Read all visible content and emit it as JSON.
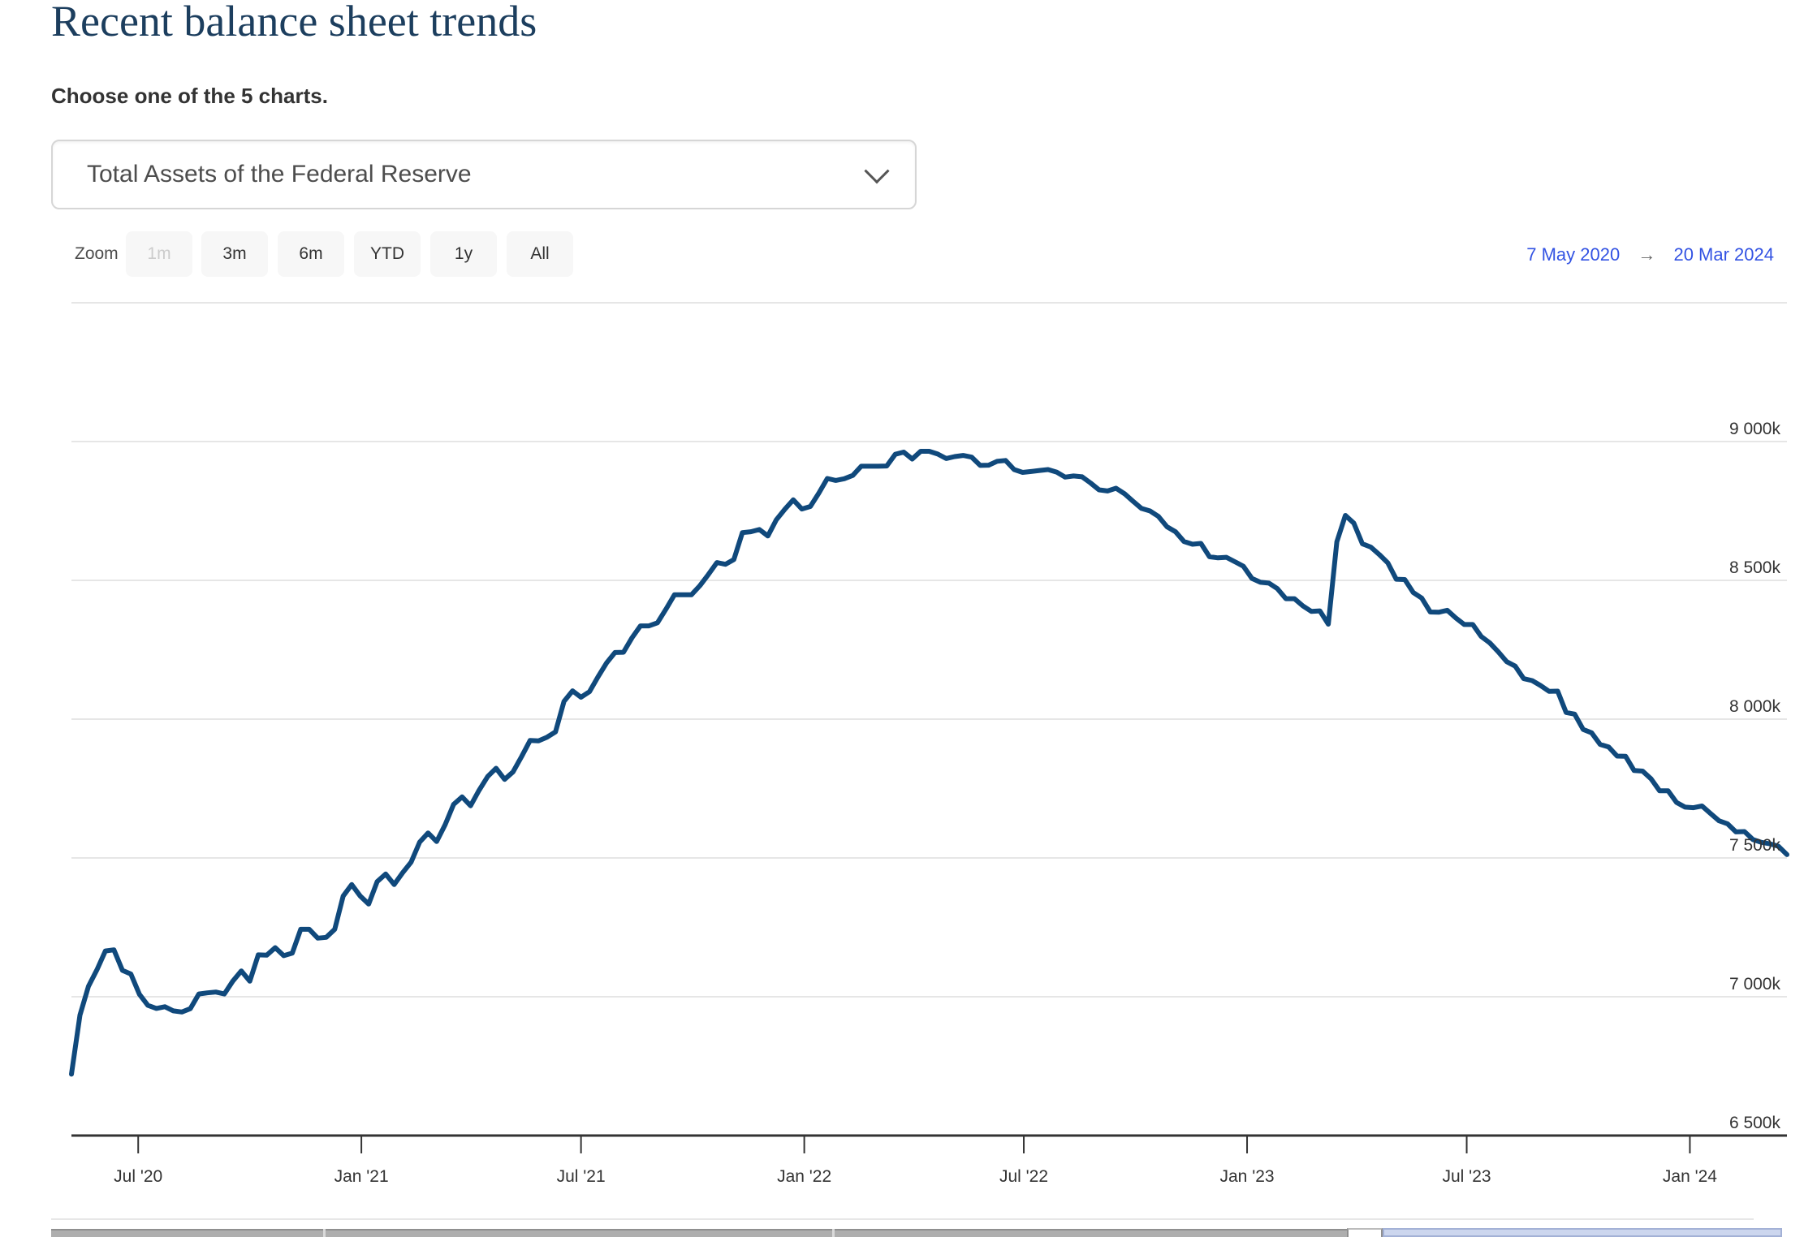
{
  "page": {
    "title": "Recent balance sheet trends",
    "subtitle": "Choose one of the 5 charts."
  },
  "chart_selector": {
    "selected": "Total Assets of the Federal Reserve"
  },
  "toolbar": {
    "zoom_label": "Zoom",
    "buttons": [
      {
        "label": "1m",
        "disabled": true
      },
      {
        "label": "3m",
        "disabled": false
      },
      {
        "label": "6m",
        "disabled": false
      },
      {
        "label": "YTD",
        "disabled": false
      },
      {
        "label": "1y",
        "disabled": false
      },
      {
        "label": "All",
        "disabled": false
      }
    ],
    "range_from": "7 May 2020",
    "arrow": "→",
    "range_to": "20 Mar 2024"
  },
  "colors": {
    "series_line": "#10497c",
    "title_text": "#1c3e5e",
    "date_link": "#3353e3",
    "grid": "#e6e6e6",
    "axis": "#333333",
    "button_bg": "#f7f7f7",
    "disabled_text": "#cccccc",
    "scroll_thumb": "#ccd6ee"
  },
  "chart_data": {
    "type": "line",
    "series_name": "Total Assets of the Federal Reserve",
    "unit": "USD billions; axis labels shown as thousands of millions, e.g. '9 000k' = 9,000,000 million",
    "start_date": "2020-05-07",
    "end_date": "2024-03-20",
    "interval": "weekly",
    "grid": true,
    "legend": false,
    "ylim": [
      6500,
      9500
    ],
    "y_gridline_values": [
      9500,
      9000,
      8500,
      8000,
      7500,
      7000
    ],
    "y_ticks": [
      {
        "label": "9 000k",
        "value": 9000
      },
      {
        "label": "8 500k",
        "value": 8500
      },
      {
        "label": "8 000k",
        "value": 8000
      },
      {
        "label": "7 500k",
        "value": 7500
      },
      {
        "label": "7 000k",
        "value": 7000
      },
      {
        "label": "6 500k",
        "value": 6500
      }
    ],
    "x_ticks": [
      {
        "label": "Jul '20",
        "week": 7.86
      },
      {
        "label": "Jan '21",
        "week": 34.14
      },
      {
        "label": "Jul '21",
        "week": 60.0
      },
      {
        "label": "Jan '22",
        "week": 86.29
      },
      {
        "label": "Jul '22",
        "week": 112.14
      },
      {
        "label": "Jan '23",
        "week": 138.43
      },
      {
        "label": "Jul '23",
        "week": 164.29
      },
      {
        "label": "Jan '24",
        "week": 190.57
      }
    ],
    "values_usd_billions": [
      6721,
      6934,
      7037,
      7097,
      7165,
      7169,
      7095,
      7082,
      7009,
      6969,
      6958,
      6964,
      6949,
      6945,
      6957,
      7010,
      7014,
      7017,
      7010,
      7056,
      7093,
      7056,
      7151,
      7150,
      7177,
      7148,
      7157,
      7243,
      7243,
      7211,
      7214,
      7243,
      7363,
      7404,
      7363,
      7334,
      7415,
      7442,
      7404,
      7447,
      7485,
      7557,
      7590,
      7559,
      7620,
      7693,
      7720,
      7688,
      7744,
      7793,
      7823,
      7783,
      7810,
      7865,
      7923,
      7922,
      7935,
      7954,
      8064,
      8102,
      8079,
      8099,
      8152,
      8202,
      8240,
      8241,
      8293,
      8336,
      8336,
      8347,
      8396,
      8448,
      8448,
      8448,
      8481,
      8521,
      8564,
      8558,
      8575,
      8672,
      8675,
      8683,
      8660,
      8718,
      8756,
      8790,
      8757,
      8766,
      8814,
      8867,
      8860,
      8866,
      8878,
      8911,
      8911,
      8911,
      8912,
      8954,
      8962,
      8937,
      8965,
      8965,
      8955,
      8939,
      8946,
      8950,
      8944,
      8914,
      8915,
      8929,
      8932,
      8899,
      8889,
      8892,
      8896,
      8899,
      8890,
      8872,
      8876,
      8873,
      8851,
      8826,
      8822,
      8832,
      8812,
      8785,
      8759,
      8750,
      8730,
      8693,
      8675,
      8640,
      8630,
      8633,
      8585,
      8581,
      8583,
      8567,
      8551,
      8507,
      8493,
      8490,
      8470,
      8434,
      8434,
      8408,
      8388,
      8390,
      8342,
      8639,
      8734,
      8706,
      8632,
      8620,
      8593,
      8563,
      8504,
      8503,
      8456,
      8436,
      8386,
      8385,
      8392,
      8365,
      8341,
      8341,
      8298,
      8275,
      8243,
      8207,
      8191,
      8146,
      8139,
      8121,
      8100,
      8101,
      8024,
      8018,
      7963,
      7951,
      7909,
      7900,
      7867,
      7866,
      7815,
      7813,
      7785,
      7742,
      7742,
      7700,
      7683,
      7681,
      7687,
      7660,
      7634,
      7623,
      7594,
      7595,
      7566,
      7556,
      7551,
      7542,
      7512
    ]
  }
}
